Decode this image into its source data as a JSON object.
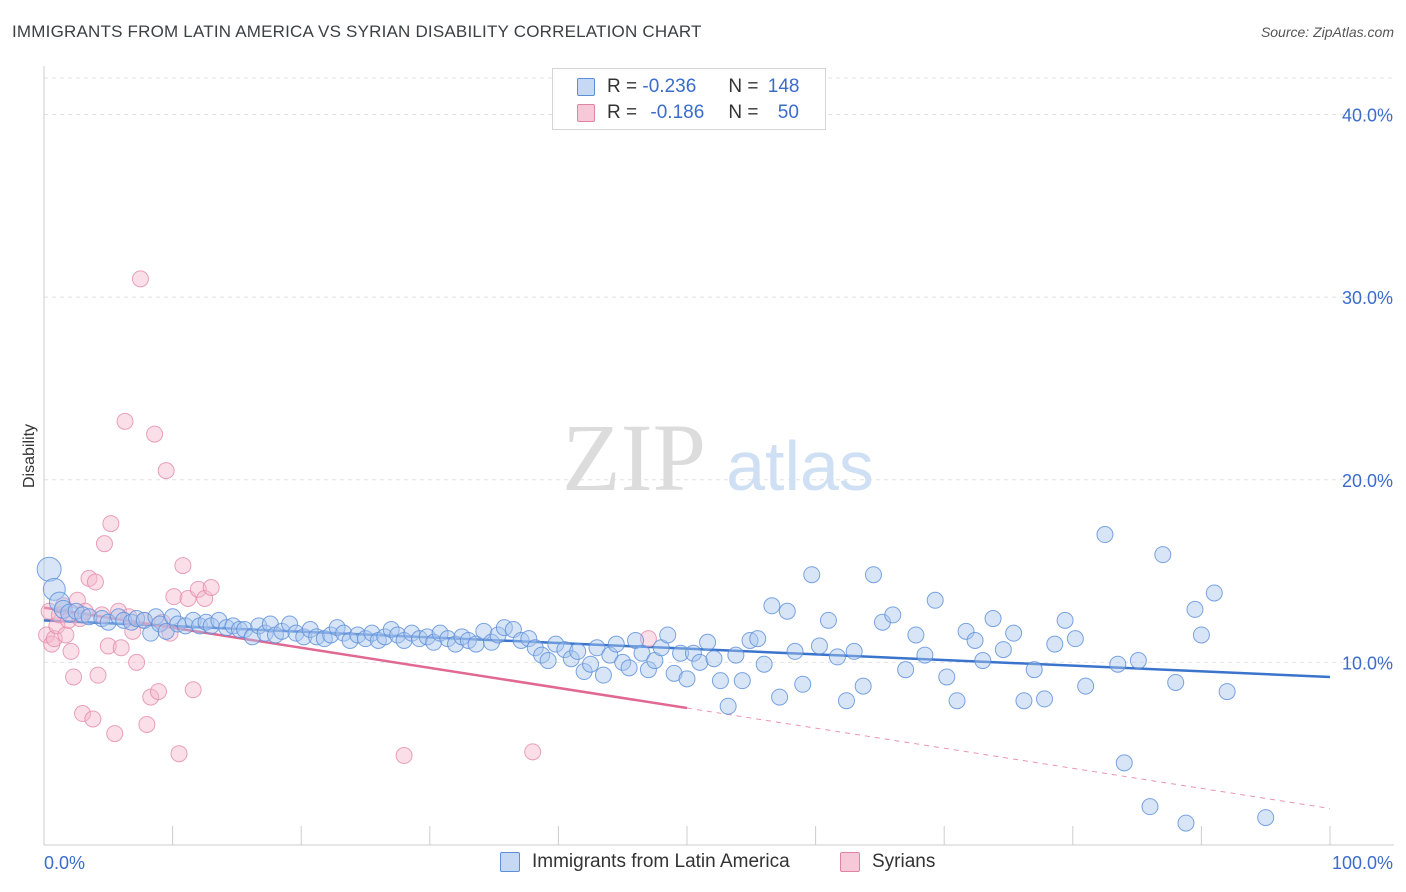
{
  "title": "IMMIGRANTS FROM LATIN AMERICA VS SYRIAN DISABILITY CORRELATION CHART",
  "source": "Source: ZipAtlas.com",
  "watermark": {
    "zip": "ZIP",
    "atlas": "atlas"
  },
  "legend": {
    "rows": [
      {
        "r_label": "R =",
        "r_value": "-0.236",
        "n_label": "N =",
        "n_value": "148"
      },
      {
        "r_label": "R =",
        "r_value": "-0.186",
        "n_label": "N =",
        "n_value": "50"
      }
    ]
  },
  "bottom_legend": [
    "Immigrants from Latin America",
    "Syrians"
  ],
  "colors": {
    "blue": "#3a74cc",
    "blue_fill": "#a9c6ee",
    "pink": "#e06892",
    "pink_fill": "#f5b8cc",
    "tick_blue": "#3b6ccc"
  },
  "chart_data": {
    "type": "scatter",
    "title": "IMMIGRANTS FROM LATIN AMERICA VS SYRIAN DISABILITY CORRELATION CHART",
    "xlabel": "",
    "ylabel": "Disability",
    "xlim": [
      0,
      100
    ],
    "ylim": [
      0,
      42
    ],
    "x_tick_labels": [
      "0.0%",
      "100.0%"
    ],
    "y_ticks": [
      10,
      20,
      30,
      40
    ],
    "y_tick_labels": [
      "10.0%",
      "20.0%",
      "30.0%",
      "40.0%"
    ],
    "grid": true,
    "series": [
      {
        "name": "Immigrants from Latin America",
        "r": -0.236,
        "n": 148,
        "trend": {
          "x": [
            0,
            100
          ],
          "y": [
            12.3,
            9.2
          ]
        },
        "points": [
          [
            0.4,
            15.1,
            12
          ],
          [
            0.8,
            14.0,
            11
          ],
          [
            1.2,
            13.3,
            10
          ],
          [
            1.5,
            12.9,
            9
          ],
          [
            2.0,
            12.7,
            9
          ],
          [
            2.5,
            12.8,
            8
          ],
          [
            3.0,
            12.6,
            8
          ],
          [
            3.5,
            12.5,
            8
          ],
          [
            4.5,
            12.4,
            8
          ],
          [
            5.0,
            12.2,
            8
          ],
          [
            5.8,
            12.5,
            8
          ],
          [
            6.2,
            12.3,
            8
          ],
          [
            6.8,
            12.2,
            8
          ],
          [
            7.2,
            12.4,
            8
          ],
          [
            7.8,
            12.3,
            8
          ],
          [
            8.3,
            11.6,
            8
          ],
          [
            8.7,
            12.5,
            8
          ],
          [
            9.0,
            12.1,
            8
          ],
          [
            9.5,
            11.7,
            8
          ],
          [
            10.0,
            12.5,
            8
          ],
          [
            10.4,
            12.1,
            8
          ],
          [
            11.0,
            12.0,
            8
          ],
          [
            11.6,
            12.3,
            8
          ],
          [
            12.1,
            12.0,
            8
          ],
          [
            12.6,
            12.2,
            8
          ],
          [
            13.0,
            12.0,
            8
          ],
          [
            13.6,
            12.3,
            8
          ],
          [
            14.2,
            11.9,
            8
          ],
          [
            14.7,
            12.0,
            8
          ],
          [
            15.2,
            11.8,
            8
          ],
          [
            15.6,
            11.8,
            8
          ],
          [
            16.2,
            11.4,
            8
          ],
          [
            16.7,
            12.0,
            8
          ],
          [
            17.2,
            11.6,
            8
          ],
          [
            17.6,
            12.1,
            8
          ],
          [
            18.0,
            11.5,
            8
          ],
          [
            18.5,
            11.7,
            8
          ],
          [
            19.1,
            12.1,
            8
          ],
          [
            19.6,
            11.6,
            8
          ],
          [
            20.2,
            11.4,
            8
          ],
          [
            20.7,
            11.8,
            8
          ],
          [
            21.2,
            11.4,
            8
          ],
          [
            21.8,
            11.3,
            8
          ],
          [
            22.3,
            11.5,
            8
          ],
          [
            22.8,
            11.9,
            8
          ],
          [
            23.3,
            11.6,
            8
          ],
          [
            23.8,
            11.2,
            8
          ],
          [
            24.4,
            11.5,
            8
          ],
          [
            25.0,
            11.3,
            8
          ],
          [
            25.5,
            11.6,
            8
          ],
          [
            26.0,
            11.2,
            8
          ],
          [
            26.5,
            11.4,
            8
          ],
          [
            27.0,
            11.8,
            8
          ],
          [
            27.5,
            11.5,
            8
          ],
          [
            28.0,
            11.2,
            8
          ],
          [
            28.6,
            11.6,
            8
          ],
          [
            29.2,
            11.3,
            8
          ],
          [
            29.8,
            11.4,
            8
          ],
          [
            30.3,
            11.1,
            8
          ],
          [
            30.8,
            11.6,
            8
          ],
          [
            31.4,
            11.3,
            8
          ],
          [
            32.0,
            11.0,
            8
          ],
          [
            32.5,
            11.4,
            8
          ],
          [
            33.0,
            11.2,
            8
          ],
          [
            33.6,
            11.0,
            8
          ],
          [
            34.2,
            11.7,
            8
          ],
          [
            34.8,
            11.1,
            8
          ],
          [
            35.3,
            11.5,
            8
          ],
          [
            35.8,
            11.9,
            8
          ],
          [
            36.5,
            11.8,
            8
          ],
          [
            37.1,
            11.2,
            8
          ],
          [
            37.7,
            11.3,
            8
          ],
          [
            38.2,
            10.8,
            8
          ],
          [
            38.7,
            10.4,
            8
          ],
          [
            39.2,
            10.1,
            8
          ],
          [
            39.8,
            11.0,
            8
          ],
          [
            40.5,
            10.7,
            8
          ],
          [
            41.0,
            10.2,
            8
          ],
          [
            41.5,
            10.6,
            8
          ],
          [
            42.0,
            9.5,
            8
          ],
          [
            42.5,
            9.9,
            8
          ],
          [
            43.0,
            10.8,
            8
          ],
          [
            43.5,
            9.3,
            8
          ],
          [
            44.0,
            10.4,
            8
          ],
          [
            44.5,
            11.0,
            8
          ],
          [
            45.0,
            10.0,
            8
          ],
          [
            45.5,
            9.7,
            8
          ],
          [
            46.0,
            11.2,
            8
          ],
          [
            46.5,
            10.5,
            8
          ],
          [
            47.0,
            9.6,
            8
          ],
          [
            47.5,
            10.1,
            8
          ],
          [
            48.0,
            10.8,
            8
          ],
          [
            48.5,
            11.5,
            8
          ],
          [
            49.0,
            9.4,
            8
          ],
          [
            49.5,
            10.5,
            8
          ],
          [
            50.0,
            9.1,
            8
          ],
          [
            50.5,
            10.5,
            8
          ],
          [
            51.0,
            10.0,
            8
          ],
          [
            51.6,
            11.1,
            8
          ],
          [
            52.1,
            10.2,
            8
          ],
          [
            52.6,
            9.0,
            8
          ],
          [
            53.2,
            7.6,
            8
          ],
          [
            53.8,
            10.4,
            8
          ],
          [
            54.3,
            9.0,
            8
          ],
          [
            54.9,
            11.2,
            8
          ],
          [
            55.5,
            11.3,
            8
          ],
          [
            56.0,
            9.9,
            8
          ],
          [
            56.6,
            13.1,
            8
          ],
          [
            57.2,
            8.1,
            8
          ],
          [
            57.8,
            12.8,
            8
          ],
          [
            58.4,
            10.6,
            8
          ],
          [
            59.0,
            8.8,
            8
          ],
          [
            59.7,
            14.8,
            8
          ],
          [
            60.3,
            10.9,
            8
          ],
          [
            61.0,
            12.3,
            8
          ],
          [
            61.7,
            10.3,
            8
          ],
          [
            62.4,
            7.9,
            8
          ],
          [
            63.0,
            10.6,
            8
          ],
          [
            63.7,
            8.7,
            8
          ],
          [
            64.5,
            14.8,
            8
          ],
          [
            65.2,
            12.2,
            8
          ],
          [
            66.0,
            12.6,
            8
          ],
          [
            67.0,
            9.6,
            8
          ],
          [
            67.8,
            11.5,
            8
          ],
          [
            68.5,
            10.4,
            8
          ],
          [
            69.3,
            13.4,
            8
          ],
          [
            70.2,
            9.2,
            8
          ],
          [
            71.0,
            7.9,
            8
          ],
          [
            71.7,
            11.7,
            8
          ],
          [
            72.4,
            11.2,
            8
          ],
          [
            73.0,
            10.1,
            8
          ],
          [
            73.8,
            12.4,
            8
          ],
          [
            74.6,
            10.7,
            8
          ],
          [
            75.4,
            11.6,
            8
          ],
          [
            76.2,
            7.9,
            8
          ],
          [
            77.0,
            9.6,
            8
          ],
          [
            77.8,
            8.0,
            8
          ],
          [
            78.6,
            11.0,
            8
          ],
          [
            79.4,
            12.3,
            8
          ],
          [
            80.2,
            11.3,
            8
          ],
          [
            81.0,
            8.7,
            8
          ],
          [
            82.5,
            17.0,
            8
          ],
          [
            83.5,
            9.9,
            8
          ],
          [
            84.0,
            4.5,
            8
          ],
          [
            85.1,
            10.1,
            8
          ],
          [
            86.0,
            2.1,
            8
          ],
          [
            87.0,
            15.9,
            8
          ],
          [
            88.0,
            8.9,
            8
          ],
          [
            88.8,
            1.2,
            8
          ],
          [
            89.5,
            12.9,
            8
          ],
          [
            90.0,
            11.5,
            8
          ],
          [
            91.0,
            13.8,
            8
          ],
          [
            92.0,
            8.4,
            8
          ],
          [
            95.0,
            1.5,
            8
          ]
        ]
      },
      {
        "name": "Syrians",
        "r": -0.186,
        "n": 50,
        "trend": {
          "x": [
            0,
            50
          ],
          "y": [
            13.0,
            7.5
          ]
        },
        "trend_dashed": {
          "x": [
            50,
            100
          ],
          "y": [
            7.5,
            2.0
          ]
        },
        "points": [
          [
            0.2,
            11.5,
            8
          ],
          [
            0.4,
            12.8,
            8
          ],
          [
            0.6,
            11.0,
            8
          ],
          [
            0.8,
            11.3,
            8
          ],
          [
            1.0,
            12.0,
            8
          ],
          [
            1.2,
            12.6,
            8
          ],
          [
            1.5,
            13.1,
            8
          ],
          [
            1.7,
            11.5,
            8
          ],
          [
            1.9,
            12.3,
            8
          ],
          [
            2.1,
            10.6,
            8
          ],
          [
            2.3,
            9.2,
            8
          ],
          [
            2.6,
            13.4,
            8
          ],
          [
            2.8,
            12.4,
            8
          ],
          [
            3.0,
            7.2,
            8
          ],
          [
            3.2,
            12.8,
            8
          ],
          [
            3.5,
            14.6,
            8
          ],
          [
            3.8,
            6.9,
            8
          ],
          [
            4.0,
            14.4,
            8
          ],
          [
            4.2,
            9.3,
            8
          ],
          [
            4.5,
            12.6,
            8
          ],
          [
            4.7,
            16.5,
            8
          ],
          [
            5.0,
            10.9,
            8
          ],
          [
            5.2,
            17.6,
            8
          ],
          [
            5.5,
            6.1,
            8
          ],
          [
            5.8,
            12.8,
            8
          ],
          [
            6.0,
            10.8,
            8
          ],
          [
            6.3,
            23.2,
            8
          ],
          [
            6.6,
            12.5,
            8
          ],
          [
            6.9,
            11.7,
            8
          ],
          [
            7.2,
            10.0,
            8
          ],
          [
            7.5,
            31.0,
            8
          ],
          [
            7.8,
            12.3,
            8
          ],
          [
            8.0,
            6.6,
            8
          ],
          [
            8.3,
            8.1,
            8
          ],
          [
            8.6,
            22.5,
            8
          ],
          [
            8.9,
            8.4,
            8
          ],
          [
            9.2,
            12.2,
            8
          ],
          [
            9.5,
            20.5,
            8
          ],
          [
            9.8,
            11.6,
            8
          ],
          [
            10.1,
            13.6,
            8
          ],
          [
            10.5,
            5.0,
            8
          ],
          [
            10.8,
            15.3,
            8
          ],
          [
            11.2,
            13.5,
            8
          ],
          [
            11.6,
            8.5,
            8
          ],
          [
            12.0,
            14.0,
            8
          ],
          [
            12.5,
            13.5,
            8
          ],
          [
            13.0,
            14.1,
            8
          ],
          [
            28.0,
            4.9,
            8
          ],
          [
            38.0,
            5.1,
            8
          ],
          [
            47.0,
            11.3,
            8
          ]
        ]
      }
    ]
  }
}
